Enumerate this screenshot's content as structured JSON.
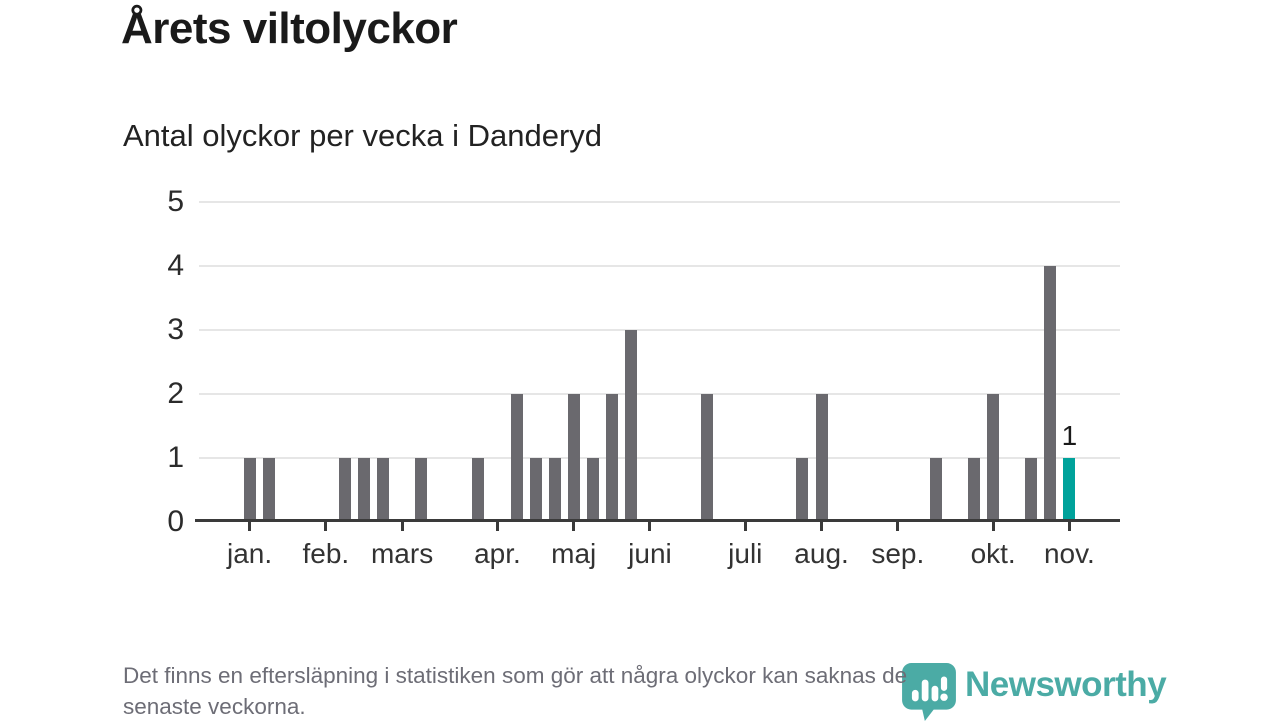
{
  "header": {
    "title": "Årets viltolyckor",
    "subtitle": "Antal olyckor per vecka i Danderyd"
  },
  "footer": {
    "line1": "Det finns en eftersläpning i statistiken som gör att några olyckor kan saknas de",
    "line2": "senaste veckorna."
  },
  "branding": {
    "logo_text": "Newsworthy",
    "logo_icon": "newsworthy-pin-icon",
    "logo_color": "#44a8a2"
  },
  "chart_data": {
    "type": "bar",
    "title": "Årets viltolyckor",
    "subtitle": "Antal olyckor per vecka i Danderyd",
    "x_unit": "vecka",
    "first_week": 1,
    "values": [
      0,
      1,
      1,
      0,
      0,
      0,
      1,
      1,
      1,
      0,
      1,
      0,
      0,
      1,
      0,
      2,
      1,
      1,
      2,
      1,
      2,
      3,
      0,
      0,
      0,
      2,
      0,
      0,
      0,
      0,
      1,
      2,
      0,
      0,
      0,
      0,
      0,
      1,
      0,
      1,
      2,
      0,
      1,
      4,
      1,
      0
    ],
    "ylim": [
      0,
      5
    ],
    "yticks": [
      0,
      1,
      2,
      3,
      4,
      5
    ],
    "month_ticks": [
      {
        "label": "jan.",
        "week": 2
      },
      {
        "label": "feb.",
        "week": 6
      },
      {
        "label": "mars",
        "week": 10
      },
      {
        "label": "apr.",
        "week": 15
      },
      {
        "label": "maj",
        "week": 19
      },
      {
        "label": "juni",
        "week": 23
      },
      {
        "label": "juli",
        "week": 28
      },
      {
        "label": "aug.",
        "week": 32
      },
      {
        "label": "sep.",
        "week": 36
      },
      {
        "label": "okt.",
        "week": 41
      },
      {
        "label": "nov.",
        "week": 45
      }
    ],
    "highlight_week": 45,
    "highlight_label": "1",
    "bar_color": "#6a696e",
    "highlight_color": "#00a29b",
    "grid": true,
    "legend": "none"
  }
}
